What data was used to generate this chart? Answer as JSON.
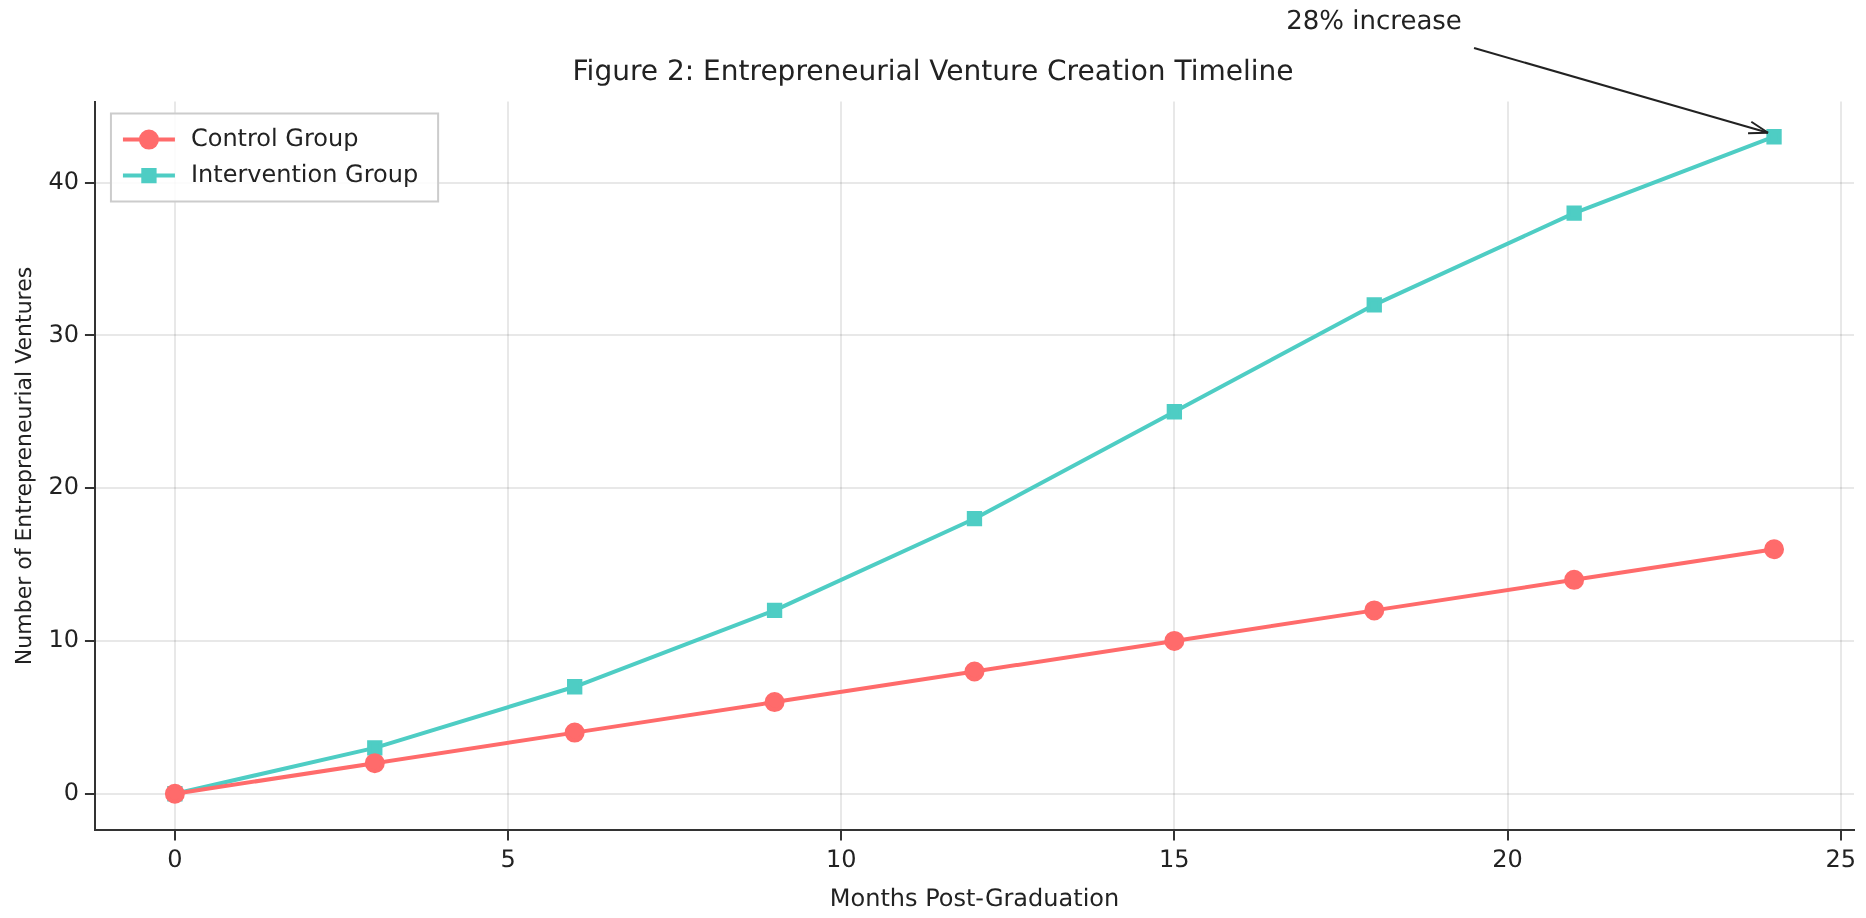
{
  "chart_data": {
    "type": "line",
    "title": "Figure 2: Entrepreneurial Venture Creation Timeline",
    "xlabel": "Months Post-Graduation",
    "ylabel": "Number of Entrepreneurial Ventures",
    "x": [
      0,
      3,
      6,
      9,
      12,
      15,
      18,
      21,
      24
    ],
    "series": [
      {
        "name": "Control Group",
        "color": "#ff6b6b",
        "marker": "circle",
        "values": [
          0,
          2,
          4,
          6,
          8,
          10,
          12,
          14,
          16
        ]
      },
      {
        "name": "Intervention Group",
        "color": "#4ecdc4",
        "marker": "square",
        "values": [
          0,
          3,
          7,
          12,
          18,
          25,
          32,
          38,
          43
        ]
      }
    ],
    "xlim": [
      -1.2,
      25.2
    ],
    "xticks": [
      0,
      5,
      10,
      15,
      20,
      25
    ],
    "ylim": [
      -2.4,
      45.3
    ],
    "yticks": [
      0,
      10,
      20,
      30,
      40
    ],
    "grid": true,
    "legend": "top left",
    "annotations": [
      {
        "text": "28% increase",
        "x": 24,
        "y": 43
      }
    ]
  }
}
